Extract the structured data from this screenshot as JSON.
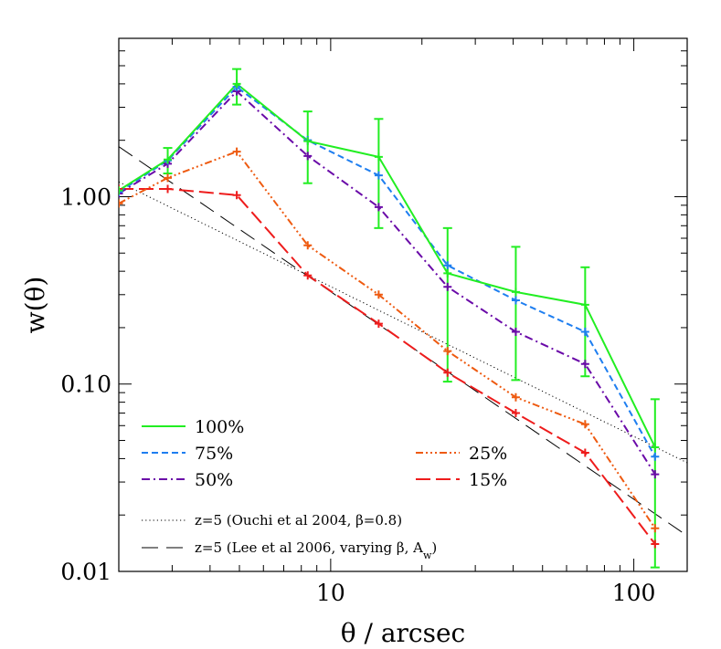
{
  "chart_data": {
    "type": "line",
    "x_scale": "log",
    "y_scale": "log",
    "xlim": [
      2,
      150
    ],
    "ylim": [
      0.01,
      7.0
    ],
    "xlabel": "θ / arcsec",
    "ylabel": "w(θ)",
    "x_ticks": [
      {
        "value": 10,
        "label": "10"
      },
      {
        "value": 100,
        "label": "100"
      }
    ],
    "y_ticks": [
      {
        "value": 0.01,
        "label": "0.01"
      },
      {
        "value": 0.1,
        "label": "0.10"
      },
      {
        "value": 1,
        "label": "1.00"
      }
    ],
    "series": [
      {
        "name": "100%",
        "color": "#22ee22",
        "dash": "solid",
        "x": [
          2.0,
          2.9,
          4.9,
          8.4,
          14.4,
          24.3,
          40.8,
          69.1,
          117.5
        ],
        "y": [
          1.08,
          1.58,
          4.0,
          1.98,
          1.63,
          0.39,
          0.31,
          0.265,
          0.046
        ],
        "yerr_low": [
          null,
          1.33,
          3.1,
          1.18,
          0.68,
          0.103,
          0.105,
          0.11,
          0.0105
        ],
        "yerr_high": [
          null,
          1.82,
          4.8,
          2.85,
          2.6,
          0.68,
          0.54,
          0.42,
          0.083
        ]
      },
      {
        "name": "75%",
        "color": "#1e7ef0",
        "dash": "short",
        "x": [
          2.0,
          2.9,
          4.9,
          8.4,
          14.4,
          24.3,
          40.8,
          69.1,
          117.5
        ],
        "y": [
          1.06,
          1.56,
          3.85,
          2.0,
          1.3,
          0.43,
          0.28,
          0.19,
          0.041
        ]
      },
      {
        "name": "50%",
        "color": "#6a0aa8",
        "dash": "dashdot",
        "x": [
          2.0,
          2.9,
          4.9,
          8.4,
          14.4,
          24.3,
          40.8,
          69.1,
          117.5
        ],
        "y": [
          1.04,
          1.5,
          3.65,
          1.65,
          0.88,
          0.33,
          0.19,
          0.128,
          0.033
        ]
      },
      {
        "name": "25%",
        "color": "#ee5a10",
        "dash": "dashdotdotdot",
        "x": [
          2.0,
          2.9,
          4.9,
          8.4,
          14.4,
          24.3,
          40.8,
          69.1,
          117.5
        ],
        "y": [
          0.92,
          1.26,
          1.74,
          0.55,
          0.3,
          0.15,
          0.085,
          0.061,
          0.017
        ]
      },
      {
        "name": "15%",
        "color": "#ee1c1c",
        "dash": "long",
        "x": [
          2.0,
          2.9,
          4.9,
          8.4,
          14.4,
          24.3,
          40.8,
          69.1,
          117.5
        ],
        "y": [
          1.1,
          1.1,
          1.02,
          0.38,
          0.21,
          0.115,
          0.07,
          0.043,
          0.014
        ]
      }
    ],
    "reference_lines": [
      {
        "name": "z=5 (Ouchi et al 2004, β=0.8)",
        "color": "#000000",
        "dash": "dotted",
        "x": [
          2.0,
          150.0
        ],
        "y": [
          1.2,
          0.038
        ]
      },
      {
        "name": "z=5 (Lee et al 2006, varying β, A",
        "name_subscript": "w",
        "name_suffix": ")",
        "color": "#000000",
        "dash": "longgap",
        "x": [
          2.0,
          150.0
        ],
        "y": [
          1.85,
          0.0155
        ]
      }
    ],
    "legend": {
      "placement": "bottom-left",
      "entries": [
        "100%",
        "75%",
        "25%",
        "50%",
        "15%"
      ]
    },
    "grid": false
  }
}
